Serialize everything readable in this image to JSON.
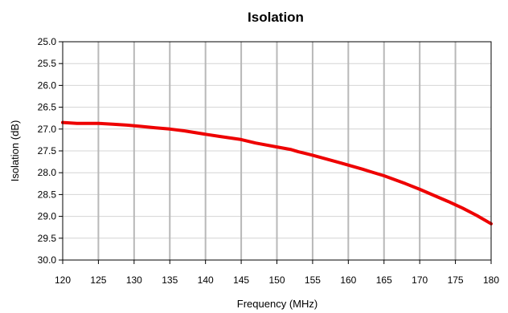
{
  "chart_data": {
    "type": "line",
    "title": "Isolation",
    "xlabel": "Frequency (MHz)",
    "ylabel": "Isolation (dB)",
    "xlim": [
      120,
      180
    ],
    "ylim": [
      25.0,
      30.0
    ],
    "y_inverted": true,
    "grid": {
      "vertical": true,
      "horizontal": true
    },
    "x_ticks": [
      "120",
      "125",
      "130",
      "135",
      "140",
      "145",
      "150",
      "155",
      "160",
      "165",
      "170",
      "175",
      "180"
    ],
    "y_ticks": [
      "25.0",
      "25.5",
      "26.0",
      "26.5",
      "27.0",
      "27.5",
      "28.0",
      "28.5",
      "29.0",
      "29.5",
      "30.0"
    ],
    "series": [
      {
        "color": "#ee0000",
        "x": [
          120,
          122,
          125,
          127,
          129,
          131,
          133,
          135,
          137,
          140,
          142,
          145,
          147,
          150,
          152,
          153,
          155,
          157,
          159,
          162,
          163,
          165,
          168,
          170,
          172,
          174,
          176,
          178,
          180
        ],
        "y": [
          26.85,
          26.87,
          26.87,
          26.89,
          26.91,
          26.94,
          26.97,
          27.0,
          27.04,
          27.12,
          27.17,
          27.24,
          27.32,
          27.41,
          27.47,
          27.52,
          27.6,
          27.69,
          27.78,
          27.92,
          27.97,
          28.07,
          28.25,
          28.38,
          28.52,
          28.66,
          28.81,
          28.98,
          29.17
        ]
      }
    ]
  },
  "colors": {
    "line": "#ee0000",
    "grid_vertical": "#b8b8b8",
    "grid_horizontal": "#d4d4d4",
    "axis": "#000000"
  }
}
